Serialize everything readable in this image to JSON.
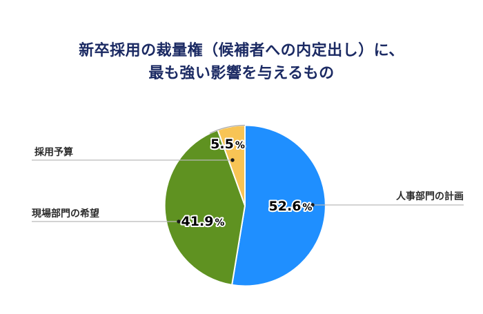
{
  "title": {
    "line1": "新卒採用の裁量権（候補者への内定出し）に、",
    "line2": "最も強い影響を与えるもの"
  },
  "chart_data": {
    "type": "pie",
    "title": "新卒採用の裁量権（候補者への内定出し）に、最も強い影響を与えるもの",
    "start_angle_deg": 0,
    "direction": "clockwise",
    "percent_symbol": "%",
    "background": "#ffffff",
    "legend_position": "callout-labels",
    "slices": [
      {
        "label": "人事部門の計画",
        "value_pct": 52.6,
        "color": "#1f8fff",
        "callout_side": "right"
      },
      {
        "label": "現場部門の希望",
        "value_pct": 41.9,
        "color": "#5f9221",
        "callout_side": "left"
      },
      {
        "label": "採用予算",
        "value_pct": 5.5,
        "color": "#f8c455",
        "callout_side": "left"
      }
    ]
  },
  "colors": {
    "title_text": "#1b2a63",
    "callout_text": "#2b2b2b",
    "leader_line": "#b9b9b9",
    "callout_dot": "#1a1a1a",
    "pct_text": "#000000",
    "pct_outline": "#ffffff",
    "yellow_rim_arc": "#9a9a9a"
  }
}
